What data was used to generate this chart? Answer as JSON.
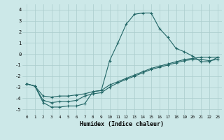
{
  "xlabel": "Humidex (Indice chaleur)",
  "xlim": [
    -0.5,
    23.5
  ],
  "ylim": [
    -5.5,
    4.5
  ],
  "yticks": [
    -5,
    -4,
    -3,
    -2,
    -1,
    0,
    1,
    2,
    3,
    4
  ],
  "xticks": [
    0,
    1,
    2,
    3,
    4,
    5,
    6,
    7,
    8,
    9,
    10,
    11,
    12,
    13,
    14,
    15,
    16,
    17,
    18,
    19,
    20,
    21,
    22,
    23
  ],
  "background_color": "#cce8e8",
  "grid_color": "#aacccc",
  "line_color": "#226666",
  "line1_x": [
    0,
    1,
    2,
    3,
    4,
    5,
    6,
    7,
    8,
    9,
    10,
    11,
    12,
    13,
    14,
    15,
    16,
    17,
    18,
    19,
    20,
    21,
    22,
    23
  ],
  "line1_y": [
    -2.7,
    -2.9,
    -4.4,
    -4.8,
    -4.8,
    -4.7,
    -4.7,
    -4.5,
    -3.4,
    -3.3,
    -0.6,
    1.0,
    2.7,
    3.6,
    3.7,
    3.7,
    2.3,
    1.5,
    0.5,
    0.2,
    -0.2,
    -0.7,
    -0.7,
    -0.3
  ],
  "line2_x": [
    0,
    1,
    2,
    3,
    4,
    5,
    6,
    7,
    8,
    9,
    10,
    11,
    12,
    13,
    14,
    15,
    16,
    17,
    18,
    19,
    20,
    21,
    22,
    23
  ],
  "line2_y": [
    -2.7,
    -2.9,
    -3.8,
    -3.9,
    -3.8,
    -3.8,
    -3.7,
    -3.6,
    -3.4,
    -3.3,
    -2.8,
    -2.5,
    -2.2,
    -1.9,
    -1.6,
    -1.3,
    -1.1,
    -0.9,
    -0.7,
    -0.5,
    -0.4,
    -0.3,
    -0.3,
    -0.3
  ],
  "line3_x": [
    0,
    1,
    2,
    3,
    4,
    5,
    6,
    7,
    8,
    9,
    10,
    11,
    12,
    13,
    14,
    15,
    16,
    17,
    18,
    19,
    20,
    21,
    22,
    23
  ],
  "line3_y": [
    -2.7,
    -2.9,
    -4.2,
    -4.4,
    -4.3,
    -4.3,
    -4.2,
    -3.8,
    -3.6,
    -3.5,
    -3.0,
    -2.6,
    -2.3,
    -2.0,
    -1.7,
    -1.4,
    -1.2,
    -1.0,
    -0.8,
    -0.6,
    -0.5,
    -0.5,
    -0.6,
    -0.5
  ]
}
